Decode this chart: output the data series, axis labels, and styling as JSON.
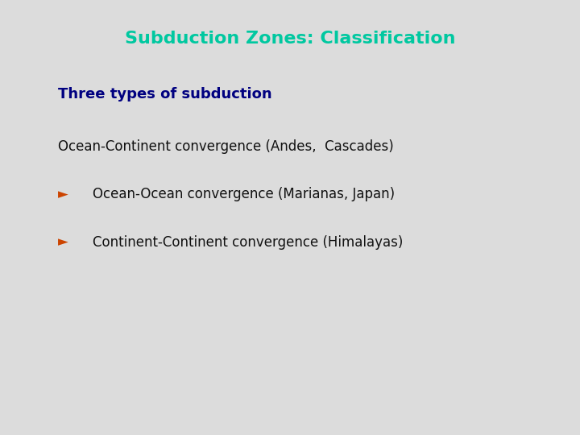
{
  "title": "Subduction Zones: Classification",
  "title_color": "#00C8A0",
  "title_fontsize": 16,
  "subtitle": "Three types of subduction",
  "subtitle_color": "#000080",
  "subtitle_fontsize": 13,
  "background_color": "#DCDCDC",
  "bullet_color": "#CC4400",
  "bullet_char": "►",
  "items": [
    {
      "text": "Ocean-Continent convergence (Andes,  Cascades)",
      "has_bullet": false,
      "color": "#111111",
      "fontsize": 12
    },
    {
      "text": "Ocean-Ocean convergence (Marianas, Japan)",
      "has_bullet": true,
      "color": "#111111",
      "fontsize": 12
    },
    {
      "text": "Continent-Continent convergence (Himalayas)",
      "has_bullet": true,
      "color": "#111111",
      "fontsize": 12
    }
  ]
}
